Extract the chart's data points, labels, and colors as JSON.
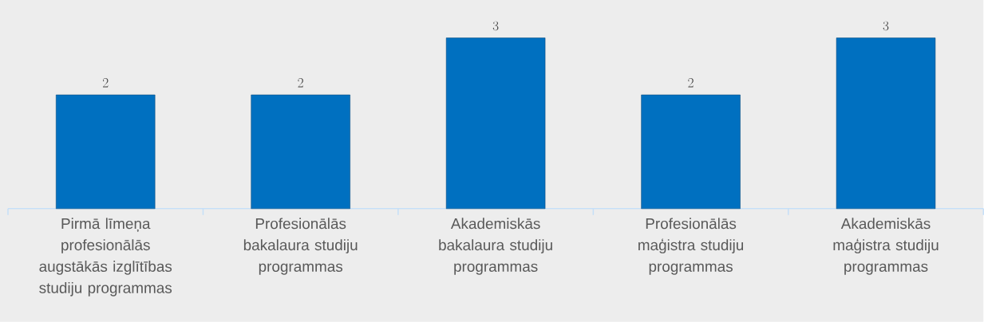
{
  "chart_data": {
    "type": "bar",
    "categories": [
      "Pirmā līmeņa profesionālās augstākās izglītības studiju programmas",
      "Profesionālās bakalaura studiju programmas",
      "Akademiskās bakalaura studiju programmas",
      "Profesionālās maģistra studiju programmas",
      "Akademiskās maģistra studiju programmas"
    ],
    "values": [
      2,
      2,
      3,
      2,
      3
    ],
    "color": "#0070c0",
    "data_labels": true
  }
}
